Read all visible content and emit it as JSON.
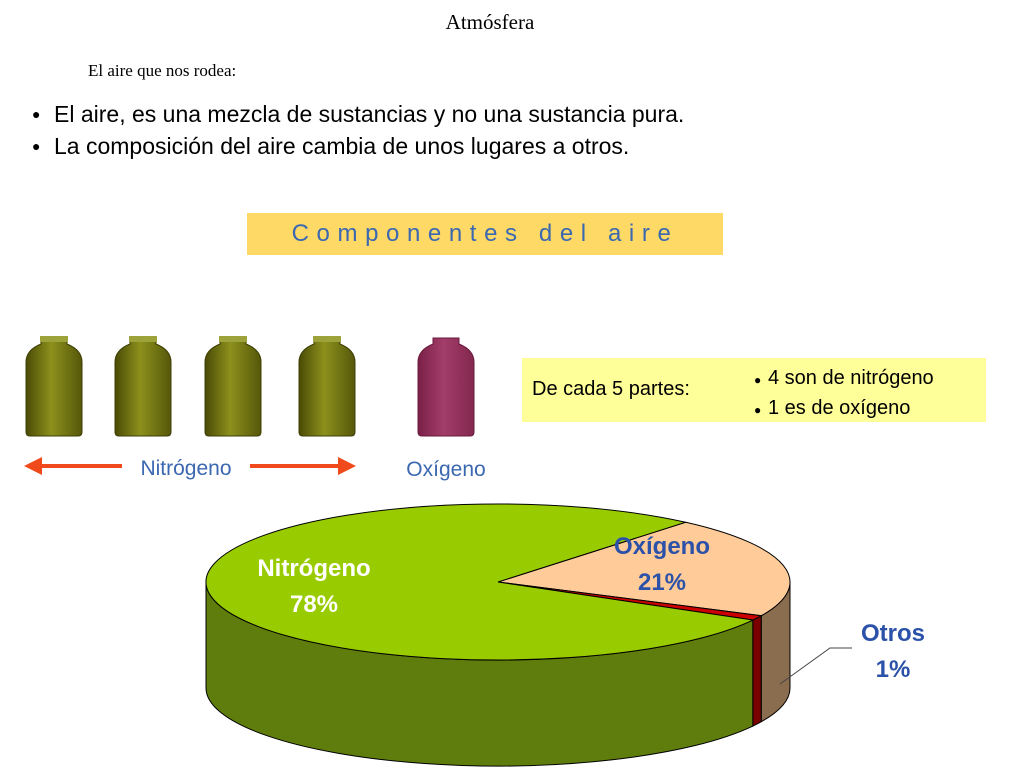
{
  "header": {
    "title": "Atmósfera",
    "subtitle": "El aire que nos rodea:"
  },
  "bullets": [
    "El aire, es una mezcla de sustancias y no una sustancia pura.",
    "La composición del aire cambia de unos lugares a otros."
  ],
  "banner": "Componentes del aire",
  "bottles": {
    "nitrogen_count": 4,
    "oxygen_count": 1,
    "nitrogen_label": "Nitrógeno",
    "oxygen_label": "Oxígeno",
    "colors": {
      "nitrogen": "#7a7d12",
      "oxygen": "#943460",
      "arrow": "#f04a1c"
    }
  },
  "info_box": {
    "label": "De cada 5 partes:",
    "items": [
      "4 son de nitrógeno",
      "1 es de oxígeno"
    ]
  },
  "chart_data": {
    "type": "pie",
    "title": "",
    "slices": [
      {
        "name": "Nitrógeno",
        "value": 78,
        "value_label": "78%",
        "color": "#99cc00"
      },
      {
        "name": "Oxígeno",
        "value": 21,
        "value_label": "21%",
        "color": "#ffcc99"
      },
      {
        "name": "Otros",
        "value": 1,
        "value_label": "1%",
        "color": "#cc0000"
      }
    ]
  }
}
